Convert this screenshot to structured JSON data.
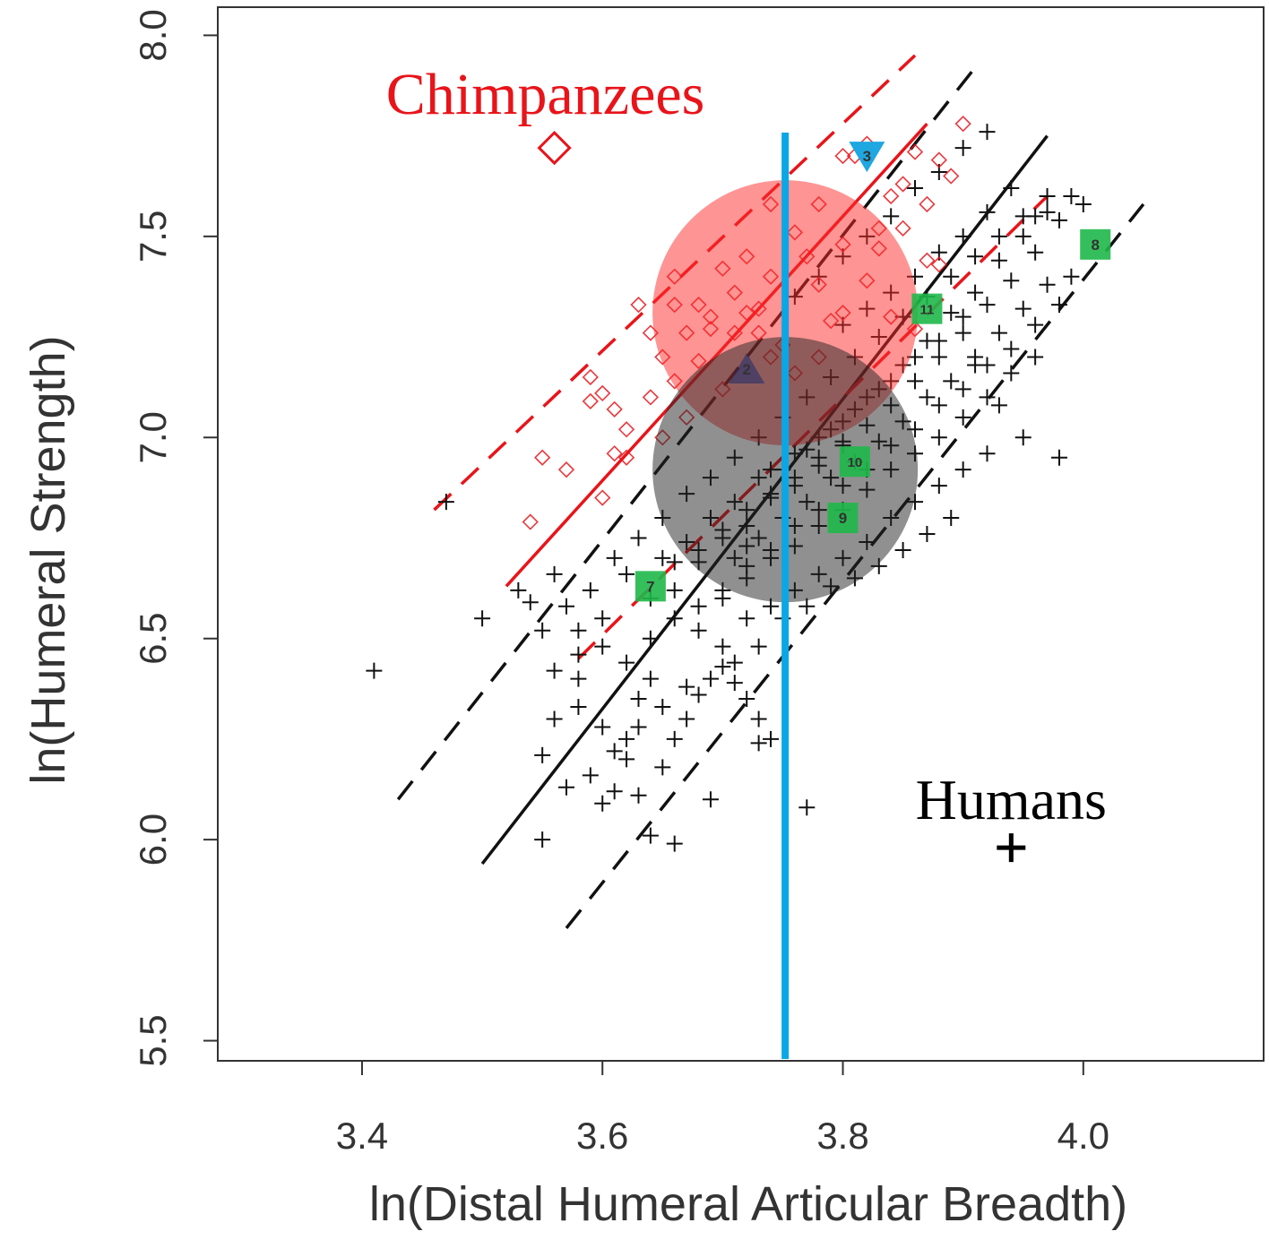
{
  "chart_data": {
    "type": "scatter",
    "xlabel": "ln(Distal Humeral Articular Breadth)",
    "ylabel": "ln(Humeral Strength)",
    "xlim": [
      3.28,
      4.15
    ],
    "ylim": [
      5.45,
      8.07
    ],
    "xticks": [
      "3.4",
      "3.6",
      "3.8",
      "4.0"
    ],
    "yticks": [
      "5.5",
      "6.0",
      "6.5",
      "7.0",
      "7.5",
      "8.0"
    ],
    "colors": {
      "chimp": "#e8141a",
      "human": "#111111",
      "reference_line": "#0aa7e6",
      "fossil": "#1fb84a",
      "fossil_blue": "#1ea7e1"
    },
    "legend": [
      {
        "label": "Chimpanzees",
        "marker": "diamond",
        "color": "#e8141a",
        "x": 3.56,
        "y": 7.72
      },
      {
        "label": "Humans",
        "marker": "plus",
        "color": "#000000",
        "x": 3.94,
        "y": 5.98
      }
    ],
    "reference_line": {
      "x": 3.752
    },
    "chimp_fit": {
      "x": [
        3.52,
        3.87
      ],
      "y": [
        6.63,
        7.78
      ]
    },
    "chimp_band_upper": {
      "x": [
        3.46,
        3.86
      ],
      "y": [
        6.82,
        7.95
      ]
    },
    "chimp_band_lower": {
      "x": [
        3.58,
        3.97
      ],
      "y": [
        6.45,
        7.6
      ]
    },
    "human_fit": {
      "x": [
        3.5,
        3.97
      ],
      "y": [
        5.94,
        7.75
      ]
    },
    "human_band_upper": {
      "x": [
        3.43,
        3.91
      ],
      "y": [
        6.1,
        7.92
      ]
    },
    "human_band_lower": {
      "x": [
        3.57,
        4.05
      ],
      "y": [
        5.78,
        7.58
      ]
    },
    "chimp_points": [
      [
        3.54,
        6.79
      ],
      [
        3.55,
        6.95
      ],
      [
        3.57,
        6.92
      ],
      [
        3.59,
        7.15
      ],
      [
        3.59,
        7.09
      ],
      [
        3.6,
        7.11
      ],
      [
        3.61,
        7.07
      ],
      [
        3.61,
        6.96
      ],
      [
        3.6,
        6.85
      ],
      [
        3.62,
        6.95
      ],
      [
        3.62,
        7.02
      ],
      [
        3.63,
        7.33
      ],
      [
        3.64,
        7.26
      ],
      [
        3.65,
        7.2
      ],
      [
        3.66,
        7.33
      ],
      [
        3.66,
        7.4
      ],
      [
        3.67,
        7.26
      ],
      [
        3.68,
        7.33
      ],
      [
        3.69,
        7.3
      ],
      [
        3.7,
        7.42
      ],
      [
        3.71,
        7.36
      ],
      [
        3.72,
        7.45
      ],
      [
        3.72,
        7.31
      ],
      [
        3.73,
        7.26
      ],
      [
        3.74,
        7.4
      ],
      [
        3.74,
        7.58
      ],
      [
        3.75,
        7.23
      ],
      [
        3.76,
        7.51
      ],
      [
        3.77,
        7.45
      ],
      [
        3.78,
        7.38
      ],
      [
        3.79,
        7.29
      ],
      [
        3.8,
        7.31
      ],
      [
        3.81,
        7.7
      ],
      [
        3.82,
        7.73
      ],
      [
        3.83,
        7.52
      ],
      [
        3.84,
        7.6
      ],
      [
        3.85,
        7.63
      ],
      [
        3.86,
        7.71
      ],
      [
        3.87,
        7.58
      ],
      [
        3.88,
        7.43
      ],
      [
        3.89,
        7.65
      ],
      [
        3.9,
        7.78
      ],
      [
        3.86,
        7.27
      ],
      [
        3.84,
        7.3
      ],
      [
        3.82,
        7.39
      ],
      [
        3.8,
        7.48
      ],
      [
        3.78,
        7.2
      ],
      [
        3.76,
        7.16
      ],
      [
        3.68,
        7.19
      ],
      [
        3.66,
        7.14
      ],
      [
        3.7,
        7.12
      ],
      [
        3.74,
        7.2
      ],
      [
        3.64,
        7.1
      ],
      [
        3.65,
        7.0
      ],
      [
        3.67,
        7.05
      ],
      [
        3.78,
        7.58
      ],
      [
        3.88,
        7.69
      ],
      [
        3.8,
        7.7
      ],
      [
        3.83,
        7.47
      ],
      [
        3.85,
        7.52
      ],
      [
        3.87,
        7.44
      ],
      [
        3.71,
        7.26
      ],
      [
        3.73,
        7.32
      ],
      [
        3.69,
        7.27
      ]
    ],
    "human_points": [
      [
        3.41,
        6.42
      ],
      [
        3.47,
        6.84
      ],
      [
        3.5,
        6.55
      ],
      [
        3.55,
        6.52
      ],
      [
        3.56,
        6.42
      ],
      [
        3.58,
        6.46
      ],
      [
        3.55,
        6.21
      ],
      [
        3.56,
        6.3
      ],
      [
        3.58,
        6.33
      ],
      [
        3.6,
        6.28
      ],
      [
        3.62,
        6.25
      ],
      [
        3.63,
        6.35
      ],
      [
        3.64,
        6.4
      ],
      [
        3.62,
        6.2
      ],
      [
        3.61,
        6.12
      ],
      [
        3.6,
        6.09
      ],
      [
        3.63,
        6.11
      ],
      [
        3.65,
        6.18
      ],
      [
        3.66,
        6.25
      ],
      [
        3.67,
        6.3
      ],
      [
        3.68,
        6.36
      ],
      [
        3.7,
        6.43
      ],
      [
        3.71,
        6.39
      ],
      [
        3.72,
        6.35
      ],
      [
        3.73,
        6.3
      ],
      [
        3.74,
        6.25
      ],
      [
        3.73,
        6.24
      ],
      [
        3.64,
        6.01
      ],
      [
        3.66,
        5.99
      ],
      [
        3.55,
        6.0
      ],
      [
        3.77,
        6.08
      ],
      [
        3.69,
        6.1
      ],
      [
        3.58,
        6.52
      ],
      [
        3.6,
        6.55
      ],
      [
        3.62,
        6.66
      ],
      [
        3.64,
        6.6
      ],
      [
        3.65,
        6.7
      ],
      [
        3.66,
        6.62
      ],
      [
        3.67,
        6.74
      ],
      [
        3.68,
        6.69
      ],
      [
        3.69,
        6.8
      ],
      [
        3.7,
        6.75
      ],
      [
        3.71,
        6.84
      ],
      [
        3.72,
        6.78
      ],
      [
        3.73,
        6.9
      ],
      [
        3.74,
        6.85
      ],
      [
        3.75,
        6.92
      ],
      [
        3.76,
        6.88
      ],
      [
        3.77,
        6.97
      ],
      [
        3.78,
        6.93
      ],
      [
        3.79,
        7.02
      ],
      [
        3.8,
        6.98
      ],
      [
        3.81,
        7.07
      ],
      [
        3.82,
        7.03
      ],
      [
        3.83,
        7.12
      ],
      [
        3.84,
        7.08
      ],
      [
        3.85,
        7.18
      ],
      [
        3.86,
        7.14
      ],
      [
        3.87,
        7.24
      ],
      [
        3.88,
        7.2
      ],
      [
        3.89,
        7.31
      ],
      [
        3.9,
        7.26
      ],
      [
        3.91,
        7.36
      ],
      [
        3.92,
        7.33
      ],
      [
        3.93,
        7.44
      ],
      [
        3.94,
        7.39
      ],
      [
        3.95,
        7.5
      ],
      [
        3.96,
        7.46
      ],
      [
        3.97,
        7.56
      ],
      [
        3.98,
        7.54
      ],
      [
        3.99,
        7.6
      ],
      [
        4.0,
        7.58
      ],
      [
        3.7,
        6.6
      ],
      [
        3.72,
        6.65
      ],
      [
        3.74,
        6.7
      ],
      [
        3.76,
        6.73
      ],
      [
        3.78,
        6.78
      ],
      [
        3.8,
        6.82
      ],
      [
        3.82,
        6.87
      ],
      [
        3.84,
        6.92
      ],
      [
        3.86,
        6.96
      ],
      [
        3.88,
        7.0
      ],
      [
        3.9,
        7.05
      ],
      [
        3.92,
        7.1
      ],
      [
        3.94,
        7.16
      ],
      [
        3.96,
        7.2
      ],
      [
        3.68,
        6.52
      ],
      [
        3.7,
        6.48
      ],
      [
        3.72,
        6.55
      ],
      [
        3.74,
        6.58
      ],
      [
        3.76,
        6.62
      ],
      [
        3.78,
        6.66
      ],
      [
        3.8,
        6.7
      ],
      [
        3.82,
        6.74
      ],
      [
        3.84,
        6.8
      ],
      [
        3.86,
        6.84
      ],
      [
        3.88,
        6.88
      ],
      [
        3.9,
        6.92
      ],
      [
        3.92,
        6.96
      ],
      [
        3.95,
        7.0
      ],
      [
        3.98,
        6.95
      ],
      [
        3.99,
        7.4
      ],
      [
        3.93,
        7.08
      ],
      [
        3.91,
        7.18
      ],
      [
        3.75,
        7.05
      ],
      [
        3.77,
        7.1
      ],
      [
        3.79,
        7.15
      ],
      [
        3.81,
        7.2
      ],
      [
        3.83,
        7.25
      ],
      [
        3.85,
        7.3
      ],
      [
        3.87,
        7.35
      ],
      [
        3.89,
        7.4
      ],
      [
        3.91,
        7.45
      ],
      [
        3.93,
        7.5
      ],
      [
        3.95,
        7.55
      ],
      [
        3.97,
        7.6
      ],
      [
        3.73,
        7.0
      ],
      [
        3.71,
        6.95
      ],
      [
        3.69,
        6.9
      ],
      [
        3.67,
        6.86
      ],
      [
        3.65,
        6.8
      ],
      [
        3.63,
        6.75
      ],
      [
        3.61,
        6.7
      ],
      [
        3.59,
        6.62
      ],
      [
        3.57,
        6.58
      ],
      [
        3.54,
        6.59
      ],
      [
        3.53,
        6.62
      ],
      [
        3.56,
        6.66
      ],
      [
        3.76,
        7.35
      ],
      [
        3.78,
        7.4
      ],
      [
        3.8,
        7.45
      ],
      [
        3.82,
        7.5
      ],
      [
        3.84,
        7.55
      ],
      [
        3.86,
        7.62
      ],
      [
        3.88,
        7.66
      ],
      [
        3.9,
        7.72
      ],
      [
        3.92,
        7.76
      ],
      [
        3.8,
        7.28
      ],
      [
        3.82,
        7.32
      ],
      [
        3.84,
        7.36
      ],
      [
        3.86,
        7.4
      ],
      [
        3.88,
        7.46
      ],
      [
        3.9,
        7.5
      ],
      [
        3.92,
        7.56
      ],
      [
        3.94,
        7.62
      ],
      [
        3.96,
        7.55
      ],
      [
        3.79,
        6.63
      ],
      [
        3.81,
        6.65
      ],
      [
        3.83,
        6.68
      ],
      [
        3.85,
        6.72
      ],
      [
        3.87,
        6.76
      ],
      [
        3.89,
        6.8
      ],
      [
        3.75,
        6.55
      ],
      [
        3.77,
        6.58
      ],
      [
        3.73,
        6.48
      ],
      [
        3.71,
        6.44
      ],
      [
        3.69,
        6.4
      ],
      [
        3.67,
        6.38
      ],
      [
        3.65,
        6.33
      ],
      [
        3.63,
        6.28
      ],
      [
        3.61,
        6.22
      ],
      [
        3.59,
        6.16
      ],
      [
        3.57,
        6.13
      ],
      [
        3.62,
        6.44
      ],
      [
        3.64,
        6.5
      ],
      [
        3.66,
        6.55
      ],
      [
        3.68,
        6.58
      ],
      [
        3.7,
        6.62
      ],
      [
        3.72,
        6.68
      ],
      [
        3.74,
        6.72
      ],
      [
        3.76,
        6.78
      ],
      [
        3.78,
        6.82
      ],
      [
        3.8,
        6.88
      ],
      [
        3.82,
        6.92
      ],
      [
        3.84,
        6.98
      ],
      [
        3.86,
        7.02
      ],
      [
        3.88,
        7.08
      ],
      [
        3.9,
        7.12
      ],
      [
        3.92,
        7.18
      ],
      [
        3.94,
        7.22
      ],
      [
        3.96,
        7.28
      ],
      [
        3.98,
        7.33
      ],
      [
        3.74,
        6.92
      ],
      [
        3.76,
        6.96
      ],
      [
        3.78,
        7.0
      ],
      [
        3.8,
        7.04
      ],
      [
        3.82,
        7.1
      ],
      [
        3.84,
        7.14
      ],
      [
        3.86,
        7.2
      ],
      [
        3.88,
        7.24
      ],
      [
        3.9,
        7.3
      ],
      [
        3.71,
        6.7
      ],
      [
        3.73,
        6.75
      ],
      [
        3.75,
        6.8
      ],
      [
        3.77,
        6.84
      ],
      [
        3.79,
        6.9
      ],
      [
        3.81,
        6.94
      ],
      [
        3.83,
        6.99
      ],
      [
        3.85,
        7.04
      ],
      [
        3.87,
        7.1
      ],
      [
        3.89,
        7.14
      ],
      [
        3.91,
        7.2
      ],
      [
        3.93,
        7.26
      ],
      [
        3.95,
        7.32
      ],
      [
        3.97,
        7.38
      ],
      [
        3.72,
        6.82
      ],
      [
        3.74,
        6.86
      ],
      [
        3.76,
        6.9
      ],
      [
        3.78,
        6.95
      ],
      [
        3.8,
        6.99
      ],
      [
        3.66,
        6.69
      ],
      [
        3.68,
        6.72
      ],
      [
        3.7,
        6.77
      ],
      [
        3.72,
        6.73
      ],
      [
        3.6,
        6.48
      ],
      [
        3.58,
        6.4
      ]
    ],
    "fossils": [
      {
        "label": "3",
        "marker": "triangle-down",
        "color": "#1ea7e1",
        "x": 3.82,
        "y": 7.7
      },
      {
        "label": "2",
        "marker": "triangle",
        "color": "#1a2a6c",
        "x": 3.72,
        "y": 7.17
      },
      {
        "label": "7",
        "marker": "square",
        "color": "#1fb84a",
        "x": 3.64,
        "y": 6.63
      },
      {
        "label": "8",
        "marker": "square",
        "color": "#1fb84a",
        "x": 4.01,
        "y": 7.48
      },
      {
        "label": "9",
        "marker": "square",
        "color": "#1fb84a",
        "x": 3.8,
        "y": 6.8
      },
      {
        "label": "10",
        "marker": "square",
        "color": "#1fb84a",
        "x": 3.81,
        "y": 6.94
      },
      {
        "label": "11",
        "marker": "square",
        "color": "#1fb84a",
        "x": 3.87,
        "y": 7.32
      }
    ],
    "overlay_circles": [
      {
        "color": "#ff2a2a",
        "opacity": 0.5,
        "x": 3.752,
        "y": 7.31
      },
      {
        "color": "#222222",
        "opacity": 0.5,
        "x": 3.752,
        "y": 6.92
      }
    ],
    "grid": false
  }
}
